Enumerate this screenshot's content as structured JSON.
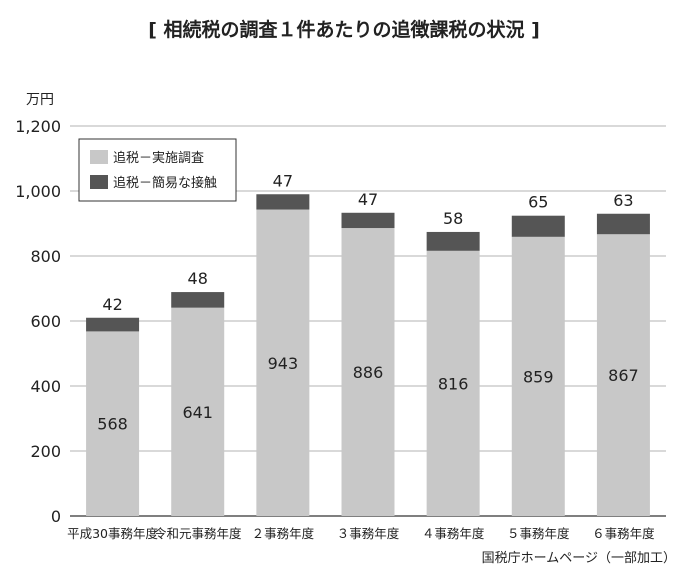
{
  "chart_data": {
    "type": "bar",
    "stacked": true,
    "title": "[ 相続税の調査１件あたりの追徴課税の状況 ]",
    "unit_label": "万円",
    "categories": [
      "平成30事務年度",
      "令和元事務年度",
      "２事務年度",
      "３事務年度",
      "４事務年度",
      "５事務年度",
      "６事務年度"
    ],
    "series": [
      {
        "name": "追税－実施調査",
        "values": [
          568,
          641,
          943,
          886,
          816,
          859,
          867
        ],
        "color": "#c8c8c8"
      },
      {
        "name": "追税－簡易な接触",
        "values": [
          42,
          48,
          47,
          47,
          58,
          65,
          63
        ],
        "color": "#555555"
      }
    ],
    "ylim": [
      0,
      1200
    ],
    "yticks": [
      "0",
      "200",
      "400",
      "600",
      "800",
      "1,000",
      "1,200"
    ],
    "grid": true,
    "legend_position": "top-left",
    "source_note": "国税庁ホームページ（一部加工）"
  }
}
